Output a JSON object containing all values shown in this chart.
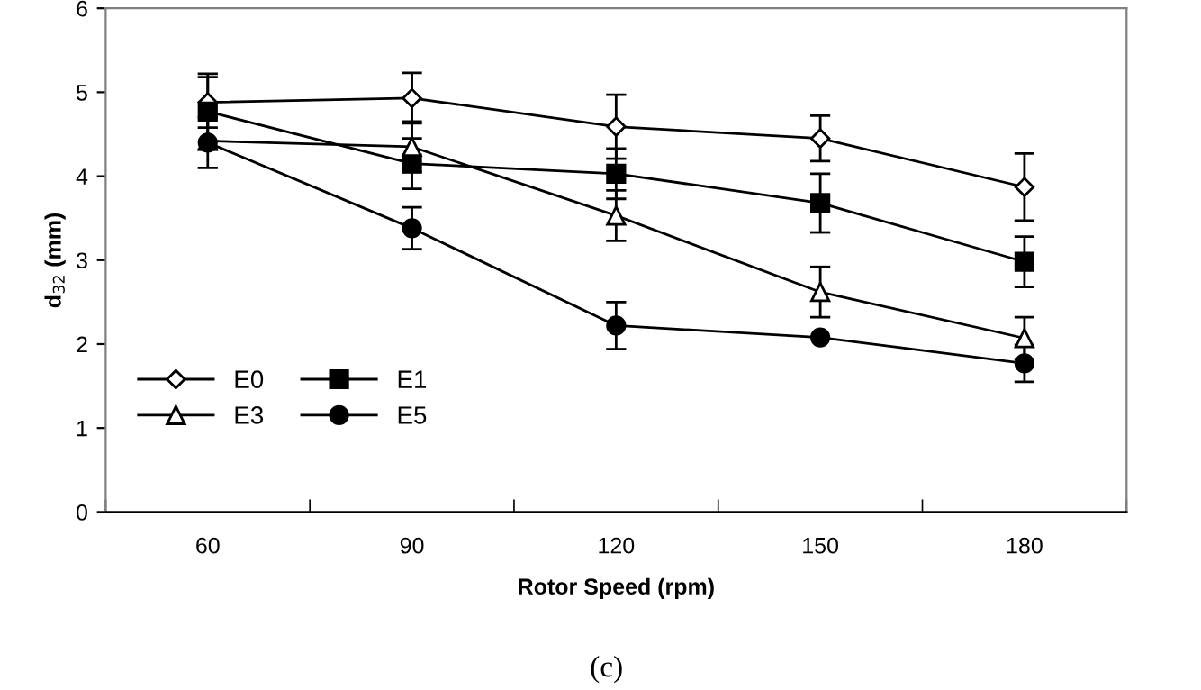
{
  "chart_data": {
    "type": "line",
    "xlabel": "Rotor Speed (rpm)",
    "ylabel": "d$_{32}$ (mm)",
    "categories": [
      "60",
      "90",
      "120",
      "150",
      "180"
    ],
    "series": [
      {
        "name": "E0",
        "color": "#000000",
        "marker": "diamond",
        "values": [
          4.88,
          4.93,
          4.59,
          4.45,
          3.87
        ],
        "errors": [
          0.3,
          0.3,
          0.38,
          0.27,
          0.4
        ]
      },
      {
        "name": "E1",
        "color": "#000000",
        "marker": "square",
        "values": [
          4.77,
          4.15,
          4.03,
          3.68,
          2.98
        ],
        "errors": [
          0.45,
          0.3,
          0.3,
          0.35,
          0.3
        ]
      },
      {
        "name": "E3",
        "color": "#000000",
        "marker": "triangle",
        "values": [
          4.42,
          4.35,
          3.53,
          2.62,
          2.07
        ],
        "errors": [
          null,
          0.3,
          0.3,
          0.3,
          0.25
        ]
      },
      {
        "name": "E5",
        "color": "#000000",
        "marker": "circle",
        "values": [
          4.4,
          3.38,
          2.22,
          2.08,
          1.77
        ],
        "errors": [
          0.3,
          0.25,
          0.28,
          null,
          0.22
        ]
      }
    ],
    "ylim": [
      0,
      6
    ],
    "yticks": [
      0,
      1,
      2,
      3,
      4,
      5,
      6
    ],
    "grid": false,
    "legend": "bottom left",
    "line_style": "solid",
    "annotations": [
      "(c)"
    ]
  }
}
